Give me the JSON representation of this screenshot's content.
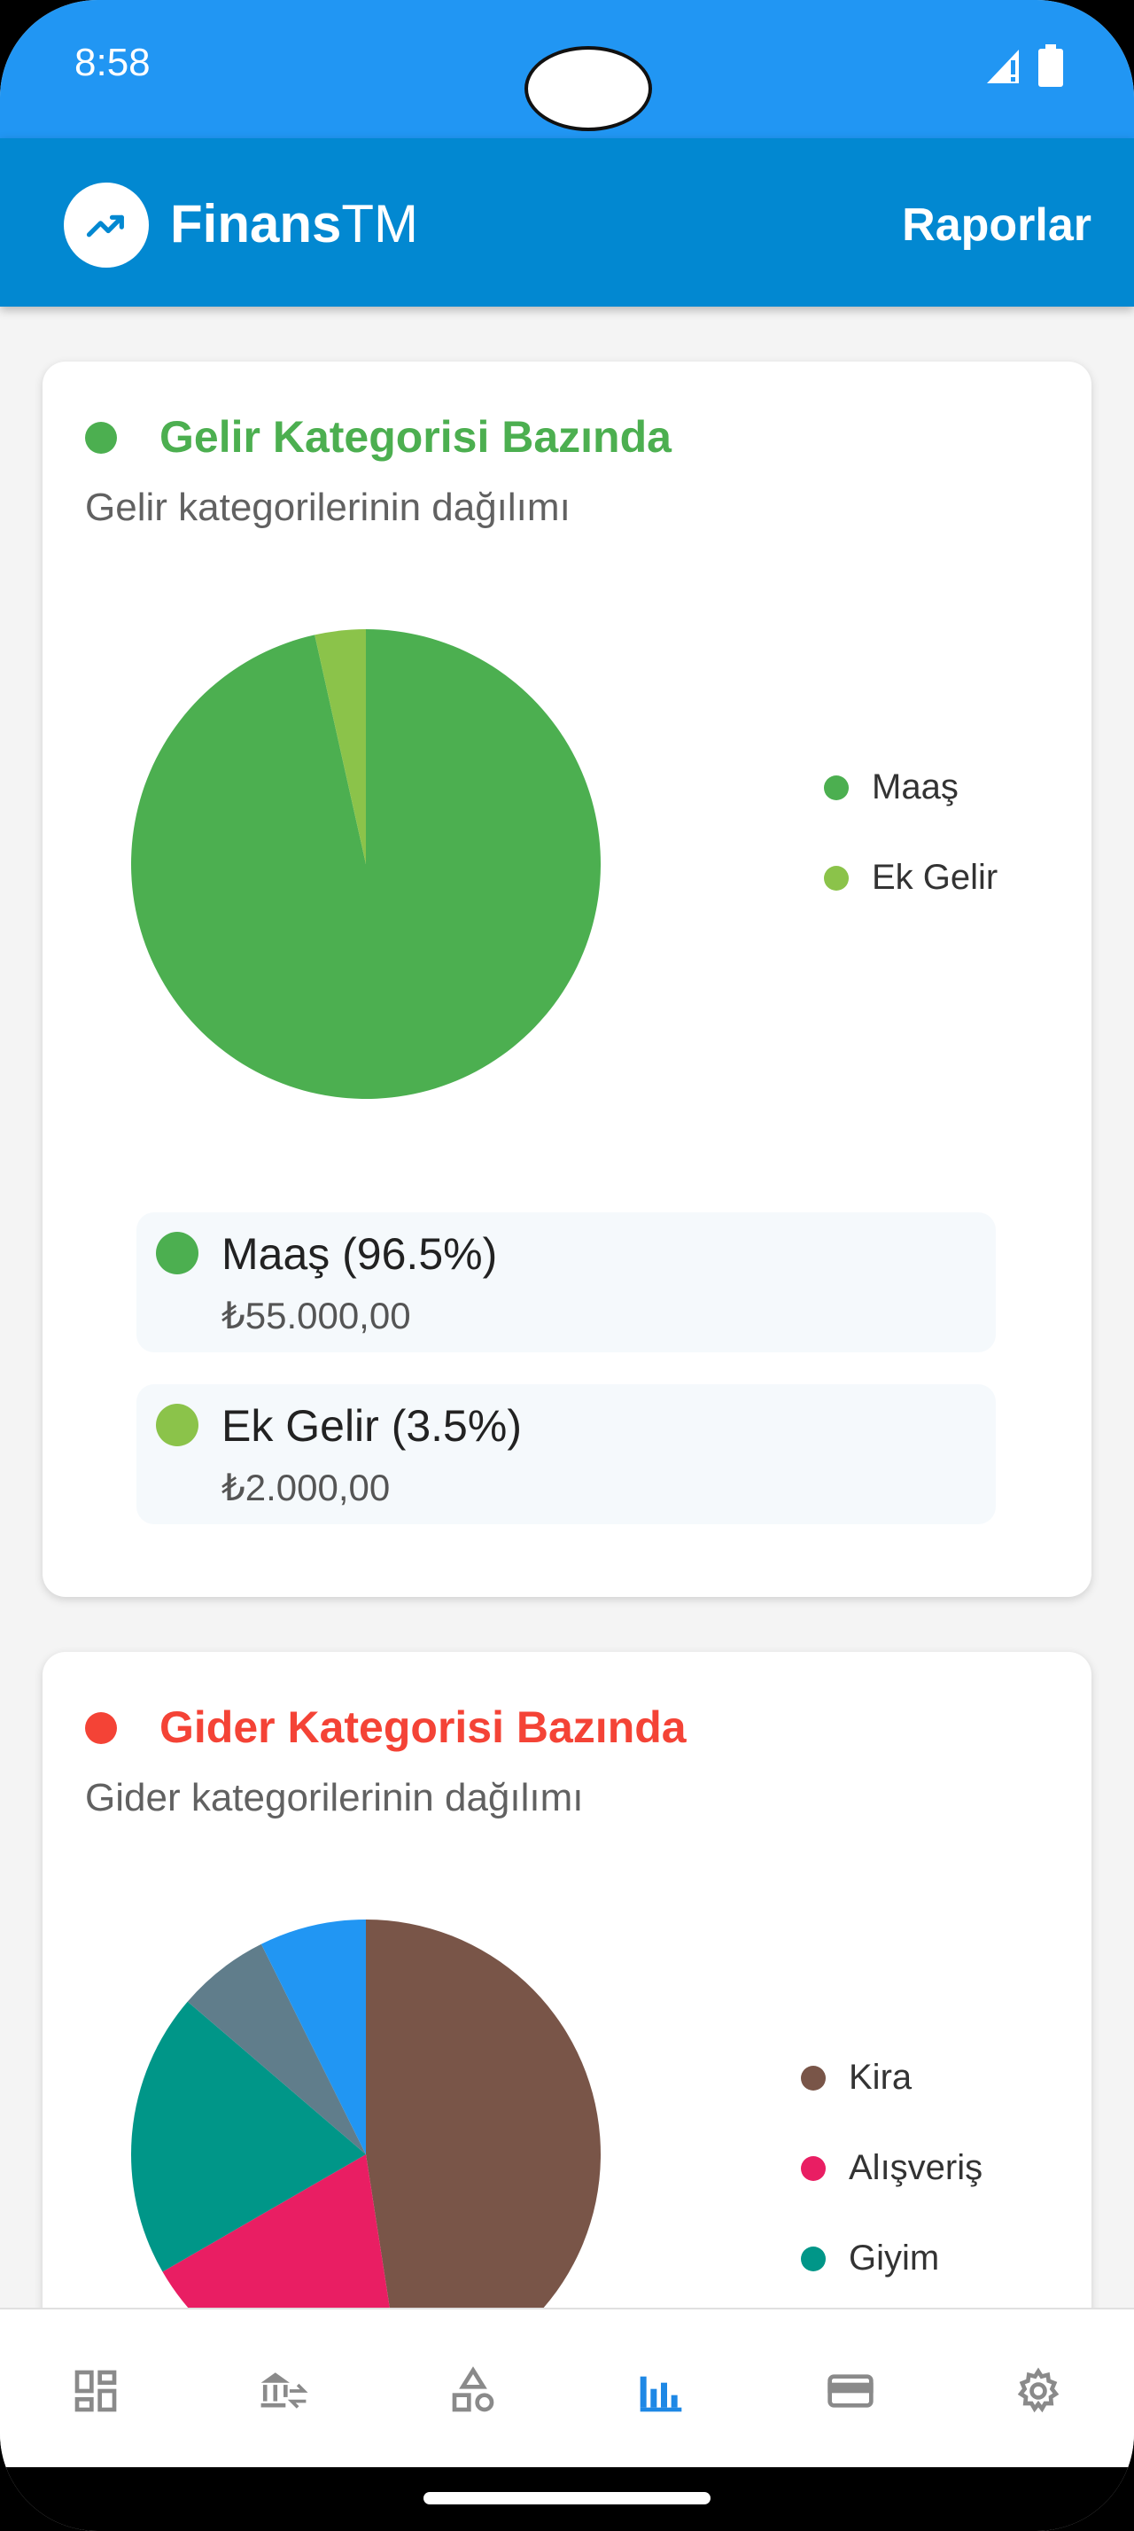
{
  "status": {
    "time": "8:58"
  },
  "appbar": {
    "brand_bold": "Finans",
    "brand_light": "TM",
    "title": "Raporlar"
  },
  "income_card": {
    "title": "Gelir Kategorisi Bazında",
    "subtitle": "Gelir kategorilerinin dağılımı",
    "accent": "#4caf50",
    "legend": [
      {
        "label": "Maaş",
        "color": "#4caf50"
      },
      {
        "label": "Ek Gelir",
        "color": "#8bc34a"
      }
    ],
    "details": [
      {
        "label": "Maaş (96.5%)",
        "amount": "₺55.000,00",
        "color": "#4caf50"
      },
      {
        "label": "Ek Gelir (3.5%)",
        "amount": "₺2.000,00",
        "color": "#8bc34a"
      }
    ]
  },
  "expense_card": {
    "title": "Gider Kategorisi Bazında",
    "subtitle": "Gider kategorilerinin dağılımı",
    "accent": "#f44336",
    "legend": [
      {
        "label": "Kira",
        "color": "#795548"
      },
      {
        "label": "Alışveriş",
        "color": "#e91e63"
      },
      {
        "label": "Giyim",
        "color": "#009688"
      }
    ]
  },
  "chart_data": [
    {
      "type": "pie",
      "categories": [
        "Maaş",
        "Ek Gelir"
      ],
      "values": [
        96.5,
        3.5
      ],
      "colors": [
        "#4caf50",
        "#8bc34a"
      ]
    },
    {
      "type": "pie",
      "categories": [
        "Kira",
        "Alışveriş",
        "Giyim",
        "",
        ""
      ],
      "values": [
        48.5,
        19.5,
        20,
        6.5,
        7.5
      ],
      "colors": [
        "#795548",
        "#e91e63",
        "#009688",
        "#607d8b",
        "#2196f3"
      ]
    }
  ],
  "bottom_nav": [
    {
      "icon": "dashboard-icon",
      "active": false
    },
    {
      "icon": "bank-transfer-icon",
      "active": false
    },
    {
      "icon": "categories-icon",
      "active": false
    },
    {
      "icon": "bar-chart-icon",
      "active": true
    },
    {
      "icon": "credit-card-icon",
      "active": false
    },
    {
      "icon": "settings-icon",
      "active": false
    }
  ],
  "colors": {
    "primary": "#2196f3",
    "appbar": "#0288d1",
    "nav_active": "#1e88e5",
    "nav_inactive": "#8a8a8a"
  }
}
